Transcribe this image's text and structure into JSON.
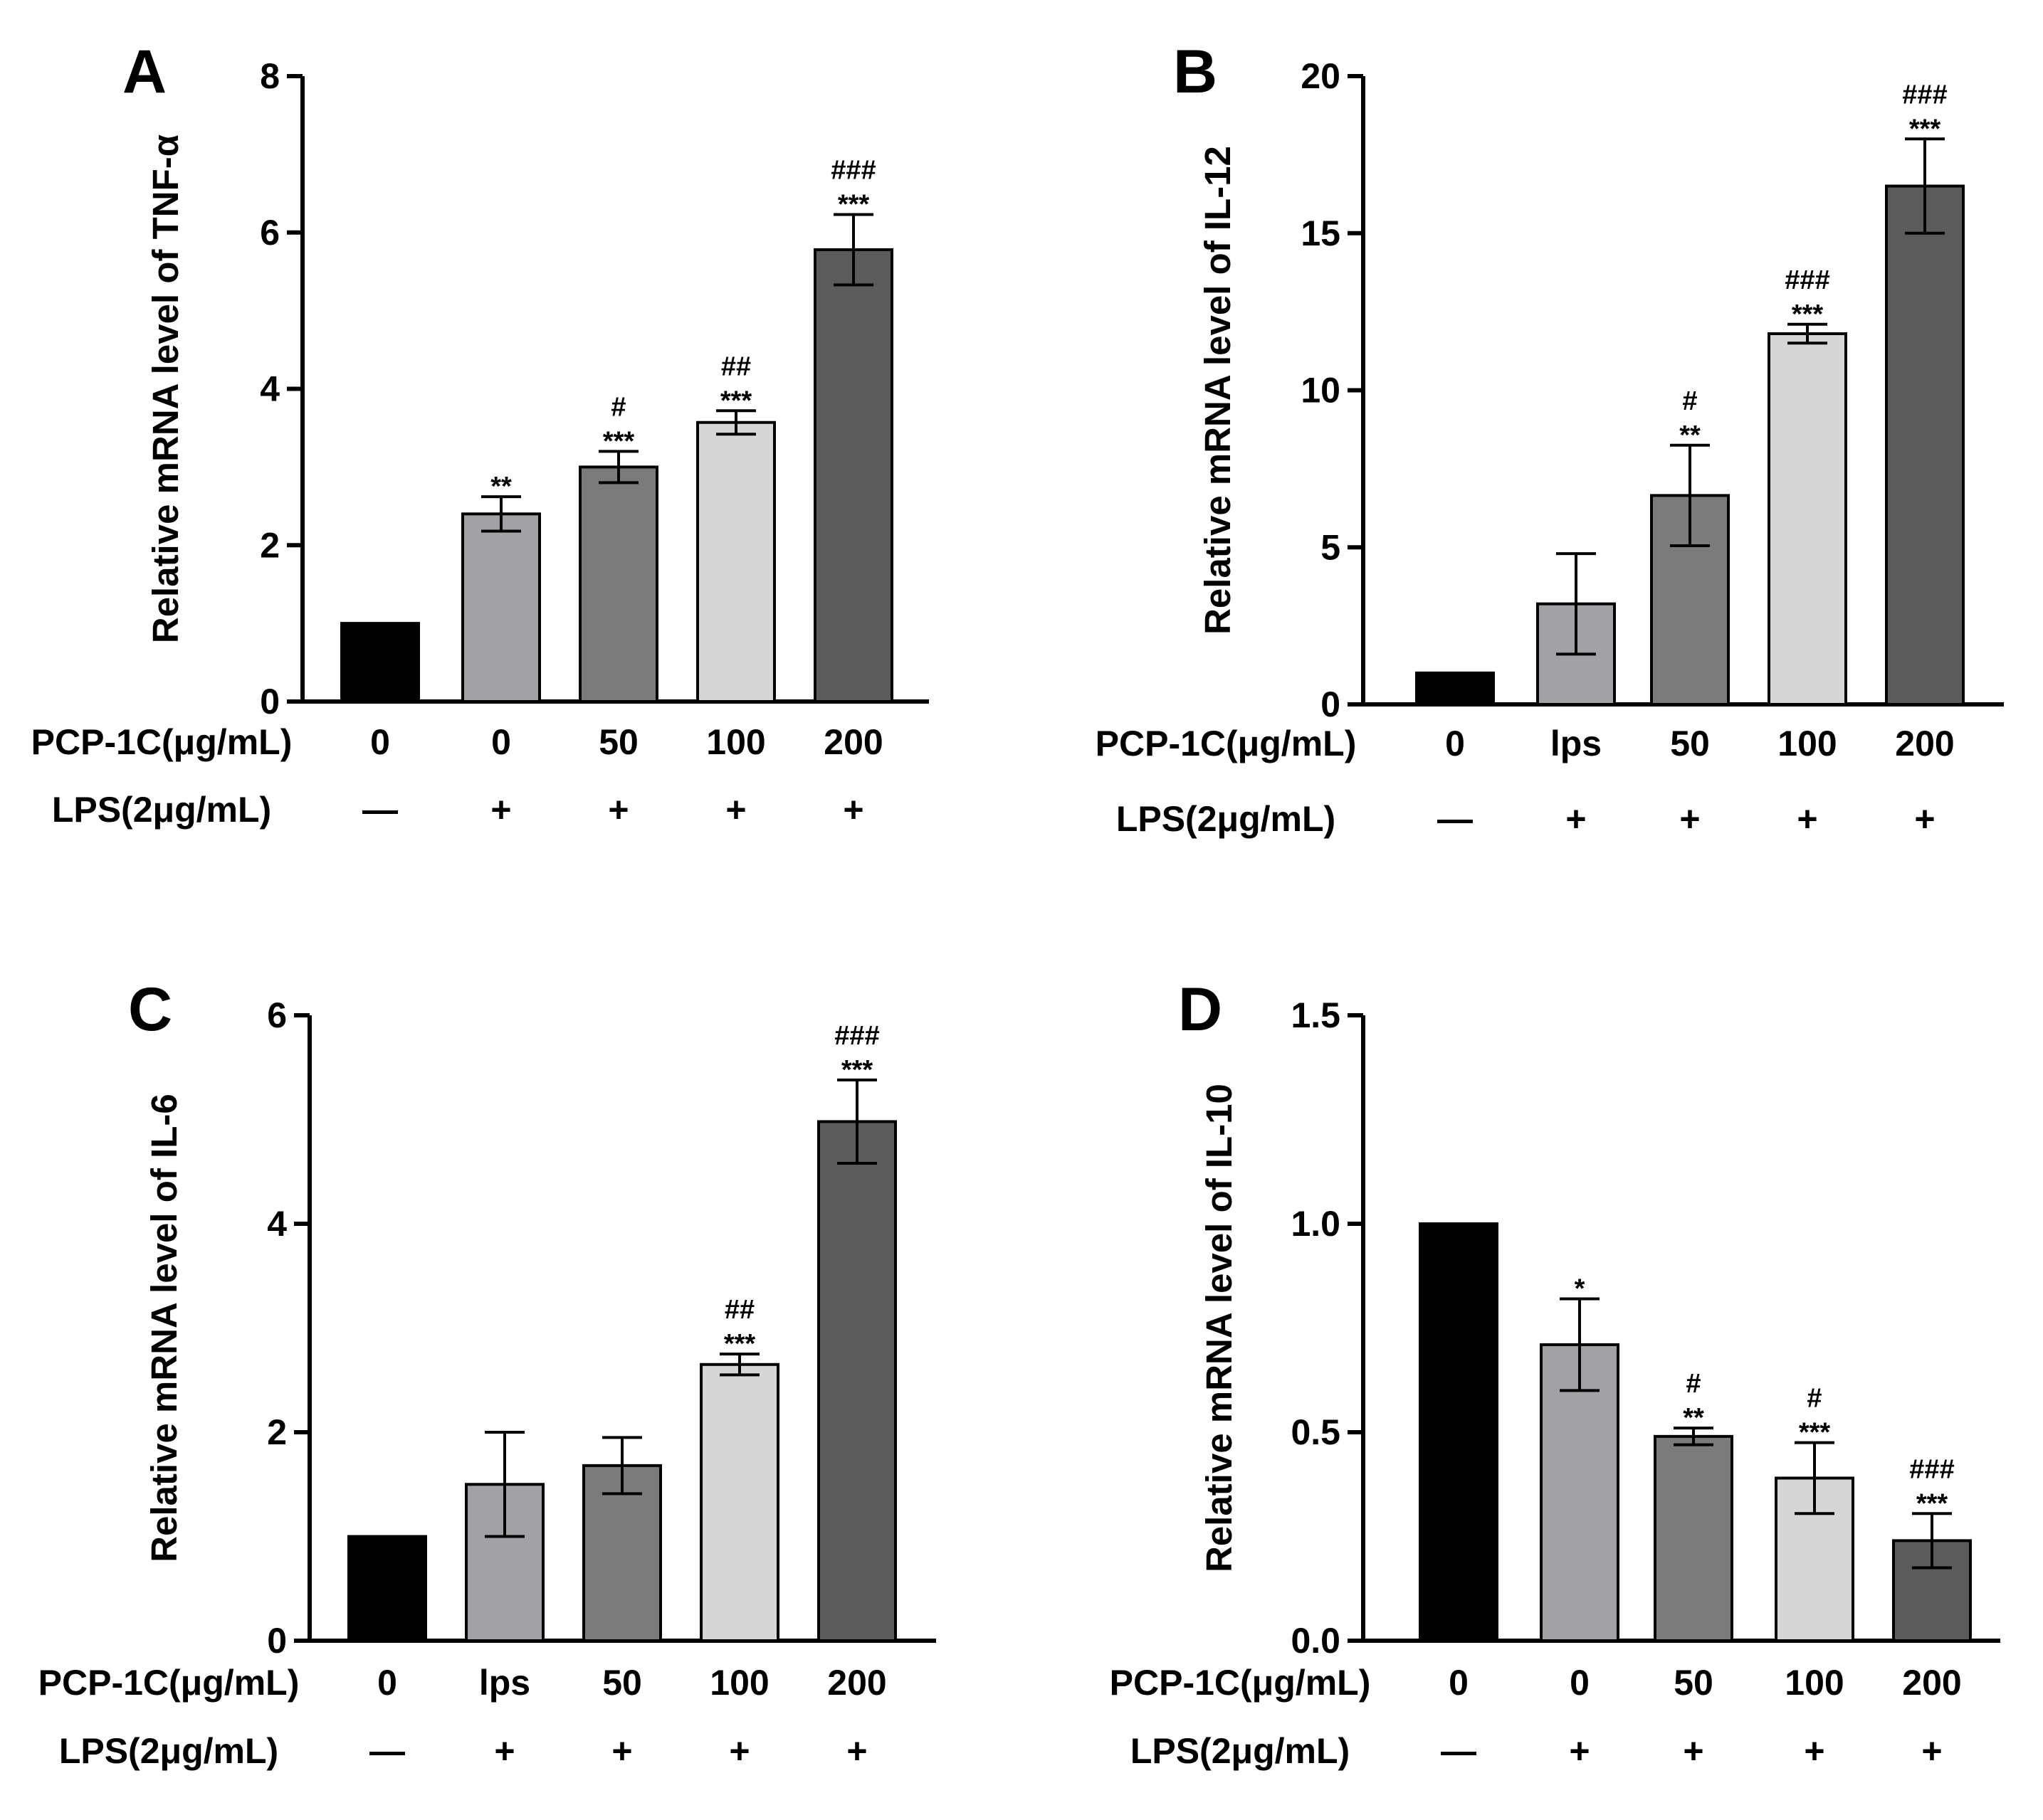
{
  "figure": {
    "colors": {
      "bars": [
        "#000000",
        "#a1a1a6",
        "#7b7b7b",
        "#d6d6d6",
        "#5b5b5b"
      ],
      "axis": "#000000"
    }
  },
  "chart_data": [
    {
      "panel": "A",
      "type": "bar",
      "ylabel": "Relative mRNA level of TNF-α",
      "ylim": [
        0,
        8
      ],
      "yticks": [
        "0",
        "2",
        "4",
        "6",
        "8"
      ],
      "row1_label": "PCP-1C(μg/mL)",
      "categories": [
        "0",
        "0",
        "50",
        "100",
        "200"
      ],
      "row2_label": "LPS(2μg/mL)",
      "lps": [
        "—",
        "+",
        "+",
        "+",
        "+"
      ],
      "values": [
        1.0,
        2.4,
        3.0,
        3.57,
        5.78
      ],
      "errors": [
        0,
        0.22,
        0.2,
        0.15,
        0.45
      ],
      "star_marks": [
        "",
        "**",
        "***",
        "***",
        "***"
      ],
      "hash_marks": [
        "",
        "",
        "#",
        "##",
        "###"
      ]
    },
    {
      "panel": "B",
      "type": "bar",
      "ylabel": "Relative mRNA level of IL-12",
      "ylim": [
        0,
        20
      ],
      "yticks": [
        "0",
        "5",
        "10",
        "15",
        "20"
      ],
      "row1_label": "PCP-1C(μg/mL)",
      "categories": [
        "0",
        "lps",
        "50",
        "100",
        "200"
      ],
      "row2_label": "LPS(2μg/mL)",
      "lps": [
        "—",
        "+",
        "+",
        "+",
        "+"
      ],
      "values": [
        1.0,
        3.2,
        6.65,
        11.8,
        16.5
      ],
      "errors": [
        0,
        1.6,
        1.6,
        0.3,
        1.5
      ],
      "star_marks": [
        "",
        "",
        "**",
        "***",
        "***"
      ],
      "hash_marks": [
        "",
        "",
        "#",
        "###",
        "###"
      ]
    },
    {
      "panel": "C",
      "type": "bar",
      "ylabel": "Relative mRNA level of IL-6",
      "ylim": [
        0,
        6
      ],
      "yticks": [
        "0",
        "2",
        "4",
        "6"
      ],
      "row1_label": "PCP-1C(μg/mL)",
      "categories": [
        "0",
        "lps",
        "50",
        "100",
        "200"
      ],
      "row2_label": "LPS(2μg/mL)",
      "lps": [
        "—",
        "+",
        "+",
        "+",
        "+"
      ],
      "values": [
        1.0,
        1.5,
        1.68,
        2.65,
        4.98
      ],
      "errors": [
        0,
        0.5,
        0.27,
        0.1,
        0.4
      ],
      "star_marks": [
        "",
        "",
        "",
        "***",
        "***"
      ],
      "hash_marks": [
        "",
        "",
        "",
        "##",
        "###"
      ]
    },
    {
      "panel": "D",
      "type": "bar",
      "ylabel": "Relative mRNA level of IL-10",
      "ylim": [
        0,
        1.5
      ],
      "yticks": [
        "0.0",
        "0.5",
        "1.0",
        "1.5"
      ],
      "row1_label": "PCP-1C(μg/mL)",
      "categories": [
        "0",
        "0",
        "50",
        "100",
        "200"
      ],
      "row2_label": "LPS(2μg/mL)",
      "lps": [
        "—",
        "+",
        "+",
        "+",
        "+"
      ],
      "values": [
        1.0,
        0.71,
        0.49,
        0.39,
        0.24
      ],
      "errors": [
        0,
        0.11,
        0.02,
        0.085,
        0.065
      ],
      "star_marks": [
        "",
        "*",
        "**",
        "***",
        "***"
      ],
      "hash_marks": [
        "",
        "",
        "#",
        "#",
        "###"
      ]
    }
  ]
}
